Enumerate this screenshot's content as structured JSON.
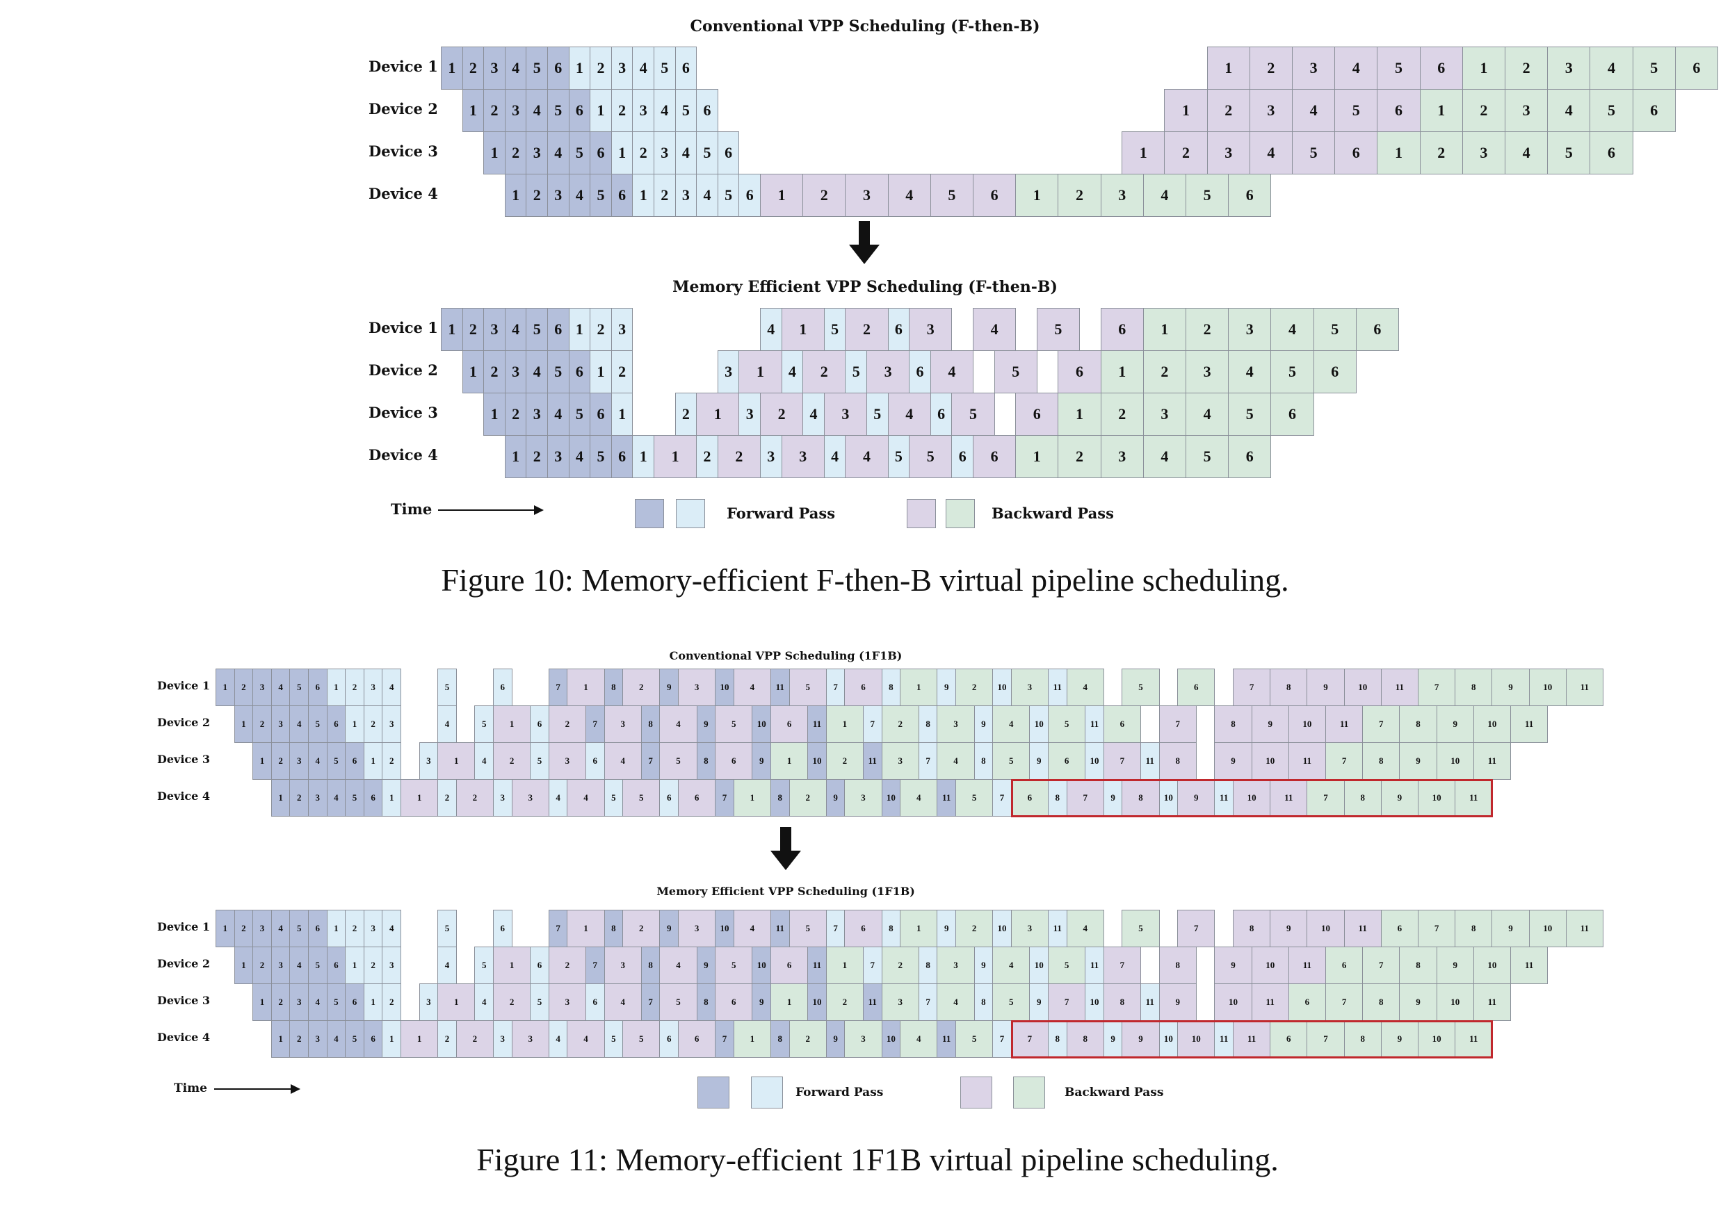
{
  "colors": {
    "forward_dark": "#b4bfdb",
    "forward_light": "#dbedf7",
    "backward_purple": "#dcd4e7",
    "backward_green": "#d7e9dc",
    "highlight": "#c0282d"
  },
  "legend": {
    "time": "Time",
    "forward": "Forward Pass",
    "backward": "Backward Pass"
  },
  "fig10": {
    "caption": "Figure 10: Memory-efficient F-then-B virtual pipeline scheduling.",
    "conventional": {
      "title": "Conventional VPP Scheduling (F-then-B)",
      "devices": [
        {
          "label": "Device 1",
          "cells": [
            "1d",
            "2d",
            "3d",
            "4d",
            "5d",
            "6d",
            "1l",
            "2l",
            "3l",
            "4l",
            "5l",
            "6l",
            null,
            null,
            null,
            null,
            null,
            null,
            null,
            null,
            null,
            null,
            null,
            null,
            null,
            null,
            null,
            null,
            null,
            null,
            null,
            null,
            null,
            null,
            null,
            null,
            "1p",
            "1p",
            "2p",
            "2p",
            "3p",
            "3p",
            "4p",
            "4p",
            "5p",
            "5p",
            "6p",
            "6p",
            "1g",
            "1g",
            "2g",
            "2g",
            "3g",
            "3g",
            "4g",
            "4g",
            "5g",
            "5g",
            "6g",
            "6g"
          ]
        },
        {
          "label": "Device 2",
          "cells": [
            null,
            "1d",
            "2d",
            "3d",
            "4d",
            "5d",
            "6d",
            "1l",
            "2l",
            "3l",
            "4l",
            "5l",
            "6l",
            null,
            null,
            null,
            null,
            null,
            null,
            null,
            null,
            null,
            null,
            null,
            null,
            null,
            null,
            null,
            null,
            null,
            null,
            null,
            null,
            null,
            "1p",
            "1p",
            "2p",
            "2p",
            "3p",
            "3p",
            "4p",
            "4p",
            "5p",
            "5p",
            "6p",
            "6p",
            "1g",
            "1g",
            "2g",
            "2g",
            "3g",
            "3g",
            "4g",
            "4g",
            "5g",
            "5g",
            "6g",
            "6g"
          ]
        },
        {
          "label": "Device 3",
          "cells": [
            null,
            null,
            "1d",
            "2d",
            "3d",
            "4d",
            "5d",
            "6d",
            "1l",
            "2l",
            "3l",
            "4l",
            "5l",
            "6l",
            null,
            null,
            null,
            null,
            null,
            null,
            null,
            null,
            null,
            null,
            null,
            null,
            null,
            null,
            null,
            null,
            null,
            null,
            "1p",
            "1p",
            "2p",
            "2p",
            "3p",
            "3p",
            "4p",
            "4p",
            "5p",
            "5p",
            "6p",
            "6p",
            "1g",
            "1g",
            "2g",
            "2g",
            "3g",
            "3g",
            "4g",
            "4g",
            "5g",
            "5g",
            "6g",
            "6g"
          ]
        },
        {
          "label": "Device 4",
          "cells": [
            null,
            null,
            null,
            "1d",
            "2d",
            "3d",
            "4d",
            "5d",
            "6d",
            "1l",
            "2l",
            "3l",
            "4l",
            "5l",
            "6l",
            "1p",
            "1p",
            "2p",
            "2p",
            "3p",
            "3p",
            "4p",
            "4p",
            "5p",
            "5p",
            "6p",
            "6p",
            "1g",
            "1g",
            "2g",
            "2g",
            "3g",
            "3g",
            "4g",
            "4g",
            "5g",
            "5g",
            "6g",
            "6g"
          ]
        }
      ]
    },
    "memory_efficient": {
      "title": "Memory Efficient VPP Scheduling (F-then-B)",
      "devices": [
        {
          "label": "Device 1",
          "cells": [
            "1d",
            "2d",
            "3d",
            "4d",
            "5d",
            "6d",
            "1l",
            "2l",
            "3l",
            null,
            null,
            null,
            null,
            null,
            null,
            "4l",
            "1p",
            "1p",
            "5l",
            "2p",
            "2p",
            "6l",
            "3p",
            "3p",
            null,
            "4p",
            "4p",
            null,
            "5p",
            "5p",
            null,
            "6p",
            "6p",
            "1g",
            "1g",
            "2g",
            "2g",
            "3g",
            "3g",
            "4g",
            "4g",
            "5g",
            "5g",
            "6g",
            "6g"
          ]
        },
        {
          "label": "Device 2",
          "cells": [
            null,
            "1d",
            "2d",
            "3d",
            "4d",
            "5d",
            "6d",
            "1l",
            "2l",
            null,
            null,
            null,
            null,
            "3l",
            "1p",
            "1p",
            "4l",
            "2p",
            "2p",
            "5l",
            "3p",
            "3p",
            "6l",
            "4p",
            "4p",
            null,
            "5p",
            "5p",
            null,
            "6p",
            "6p",
            "1g",
            "1g",
            "2g",
            "2g",
            "3g",
            "3g",
            "4g",
            "4g",
            "5g",
            "5g",
            "6g",
            "6g"
          ]
        },
        {
          "label": "Device 3",
          "cells": [
            null,
            null,
            "1d",
            "2d",
            "3d",
            "4d",
            "5d",
            "6d",
            "1l",
            null,
            null,
            "2l",
            "1p",
            "1p",
            "3l",
            "2p",
            "2p",
            "4l",
            "3p",
            "3p",
            "5l",
            "4p",
            "4p",
            "6l",
            "5p",
            "5p",
            null,
            "6p",
            "6p",
            "1g",
            "1g",
            "2g",
            "2g",
            "3g",
            "3g",
            "4g",
            "4g",
            "5g",
            "5g",
            "6g",
            "6g"
          ]
        },
        {
          "label": "Device 4",
          "cells": [
            null,
            null,
            null,
            "1d",
            "2d",
            "3d",
            "4d",
            "5d",
            "6d",
            "1l",
            "1p",
            "1p",
            "2l",
            "2p",
            "2p",
            "3l",
            "3p",
            "3p",
            "4l",
            "4p",
            "4p",
            "5l",
            "5p",
            "5p",
            "6l",
            "6p",
            "6p",
            "1g",
            "1g",
            "2g",
            "2g",
            "3g",
            "3g",
            "4g",
            "4g",
            "5g",
            "5g",
            "6g",
            "6g"
          ]
        }
      ]
    }
  },
  "fig11": {
    "caption": "Figure 11: Memory-efficient 1F1B virtual pipeline scheduling.",
    "conventional": {
      "title": "Conventional VPP Scheduling (1F1B)",
      "devices": [
        {
          "label": "Device 1",
          "cells": [
            "1d",
            "2d",
            "3d",
            "4d",
            "5d",
            "6d",
            "1l",
            "2l",
            "3l",
            "4l",
            null,
            null,
            "5l",
            null,
            null,
            "6l",
            null,
            null,
            "7d",
            "1p",
            "1p",
            "8d",
            "2p",
            "2p",
            "9d",
            "3p",
            "3p",
            "10d",
            "4p",
            "4p",
            "11d",
            "5p",
            "5p",
            "7l",
            "6p",
            "6p",
            "8l",
            "1g",
            "1g",
            "9l",
            "2g",
            "2g",
            "10l",
            "3g",
            "3g",
            "11l",
            "4g",
            "4g",
            null,
            "5g",
            "5g",
            null,
            "6g",
            "6g",
            null,
            "7p",
            "7p",
            "8p",
            "8p",
            "9p",
            "9p",
            "10p",
            "10p",
            "11p",
            "11p",
            "7g",
            "7g",
            "8g",
            "8g",
            "9g",
            "9g",
            "10g",
            "10g",
            "11g",
            "11g"
          ]
        },
        {
          "label": "Device 2",
          "cells": [
            null,
            "1d",
            "2d",
            "3d",
            "4d",
            "5d",
            "6d",
            "1l",
            "2l",
            "3l",
            null,
            null,
            "4l",
            null,
            "5l",
            "1p",
            "1p",
            "6l",
            "2p",
            "2p",
            "7d",
            "3p",
            "3p",
            "8d",
            "4p",
            "4p",
            "9d",
            "5p",
            "5p",
            "10d",
            "6p",
            "6p",
            "11d",
            "1g",
            "1g",
            "7l",
            "2g",
            "2g",
            "8l",
            "3g",
            "3g",
            "9l",
            "4g",
            "4g",
            "10l",
            "5g",
            "5g",
            "11l",
            "6g",
            "6g",
            null,
            "7p",
            "7p",
            null,
            "8p",
            "8p",
            "9p",
            "9p",
            "10p",
            "10p",
            "11p",
            "11p",
            "7g",
            "7g",
            "8g",
            "8g",
            "9g",
            "9g",
            "10g",
            "10g",
            "11g",
            "11g"
          ]
        },
        {
          "label": "Device 3",
          "cells": [
            null,
            null,
            "1d",
            "2d",
            "3d",
            "4d",
            "5d",
            "6d",
            "1l",
            "2l",
            null,
            "3l",
            "1p",
            "1p",
            "4l",
            "2p",
            "2p",
            "5l",
            "3p",
            "3p",
            "6l",
            "4p",
            "4p",
            "7d",
            "5p",
            "5p",
            "8d",
            "6p",
            "6p",
            "9d",
            "1g",
            "1g",
            "10d",
            "2g",
            "2g",
            "11d",
            "3g",
            "3g",
            "7l",
            "4g",
            "4g",
            "8l",
            "5g",
            "5g",
            "9l",
            "6g",
            "6g",
            "10l",
            "7p",
            "7p",
            "11l",
            "8p",
            "8p",
            null,
            "9p",
            "9p",
            "10p",
            "10p",
            "11p",
            "11p",
            "7g",
            "7g",
            "8g",
            "8g",
            "9g",
            "9g",
            "10g",
            "10g",
            "11g",
            "11g"
          ]
        },
        {
          "label": "Device 4",
          "cells": [
            null,
            null,
            null,
            "1d",
            "2d",
            "3d",
            "4d",
            "5d",
            "6d",
            "1l",
            "1p",
            "1p",
            "2l",
            "2p",
            "2p",
            "3l",
            "3p",
            "3p",
            "4l",
            "4p",
            "4p",
            "5l",
            "5p",
            "5p",
            "6l",
            "6p",
            "6p",
            "7d",
            "1g",
            "1g",
            "8d",
            "2g",
            "2g",
            "9d",
            "3g",
            "3g",
            "10d",
            "4g",
            "4g",
            "11d",
            "5g",
            "5g",
            "7l",
            "6g",
            "6g",
            "8l",
            "7p",
            "7p",
            "9l",
            "8p",
            "8p",
            "10l",
            "9p",
            "9p",
            "11l",
            "10p",
            "10p",
            "11p",
            "11p",
            "7g",
            "7g",
            "8g",
            "8g",
            "9g",
            "9g",
            "10g",
            "10g",
            "11g",
            "11g"
          ]
        }
      ]
    },
    "memory_efficient": {
      "title": "Memory Efficient VPP Scheduling (1F1B)",
      "devices": [
        {
          "label": "Device 1",
          "cells": [
            "1d",
            "2d",
            "3d",
            "4d",
            "5d",
            "6d",
            "1l",
            "2l",
            "3l",
            "4l",
            null,
            null,
            "5l",
            null,
            null,
            "6l",
            null,
            null,
            "7d",
            "1p",
            "1p",
            "8d",
            "2p",
            "2p",
            "9d",
            "3p",
            "3p",
            "10d",
            "4p",
            "4p",
            "11d",
            "5p",
            "5p",
            "7l",
            "6p",
            "6p",
            "8l",
            "1g",
            "1g",
            "9l",
            "2g",
            "2g",
            "10l",
            "3g",
            "3g",
            "11l",
            "4g",
            "4g",
            null,
            "5g",
            "5g",
            null,
            "7p",
            "7p",
            null,
            "8p",
            "8p",
            "9p",
            "9p",
            "10p",
            "10p",
            "11p",
            "11p",
            "6g",
            "6g",
            "7g",
            "7g",
            "8g",
            "8g",
            "9g",
            "9g",
            "10g",
            "10g",
            "11g",
            "11g"
          ]
        },
        {
          "label": "Device 2",
          "cells": [
            null,
            "1d",
            "2d",
            "3d",
            "4d",
            "5d",
            "6d",
            "1l",
            "2l",
            "3l",
            null,
            null,
            "4l",
            null,
            "5l",
            "1p",
            "1p",
            "6l",
            "2p",
            "2p",
            "7d",
            "3p",
            "3p",
            "8d",
            "4p",
            "4p",
            "9d",
            "5p",
            "5p",
            "10d",
            "6p",
            "6p",
            "11d",
            "1g",
            "1g",
            "7l",
            "2g",
            "2g",
            "8l",
            "3g",
            "3g",
            "9l",
            "4g",
            "4g",
            "10l",
            "5g",
            "5g",
            "11l",
            "7p",
            "7p",
            null,
            "8p",
            "8p",
            null,
            "9p",
            "9p",
            "10p",
            "10p",
            "11p",
            "11p",
            "6g",
            "6g",
            "7g",
            "7g",
            "8g",
            "8g",
            "9g",
            "9g",
            "10g",
            "10g",
            "11g",
            "11g"
          ]
        },
        {
          "label": "Device 3",
          "cells": [
            null,
            null,
            "1d",
            "2d",
            "3d",
            "4d",
            "5d",
            "6d",
            "1l",
            "2l",
            null,
            "3l",
            "1p",
            "1p",
            "4l",
            "2p",
            "2p",
            "5l",
            "3p",
            "3p",
            "6l",
            "4p",
            "4p",
            "7d",
            "5p",
            "5p",
            "8d",
            "6p",
            "6p",
            "9d",
            "1g",
            "1g",
            "10d",
            "2g",
            "2g",
            "11d",
            "3g",
            "3g",
            "7l",
            "4g",
            "4g",
            "8l",
            "5g",
            "5g",
            "9l",
            "7p",
            "7p",
            "10l",
            "8p",
            "8p",
            "11l",
            "9p",
            "9p",
            null,
            "10p",
            "10p",
            "11p",
            "11p",
            "6g",
            "6g",
            "7g",
            "7g",
            "8g",
            "8g",
            "9g",
            "9g",
            "10g",
            "10g",
            "11g",
            "11g"
          ]
        },
        {
          "label": "Device 4",
          "cells": [
            null,
            null,
            null,
            "1d",
            "2d",
            "3d",
            "4d",
            "5d",
            "6d",
            "1l",
            "1p",
            "1p",
            "2l",
            "2p",
            "2p",
            "3l",
            "3p",
            "3p",
            "4l",
            "4p",
            "4p",
            "5l",
            "5p",
            "5p",
            "6l",
            "6p",
            "6p",
            "7d",
            "1g",
            "1g",
            "8d",
            "2g",
            "2g",
            "9d",
            "3g",
            "3g",
            "10d",
            "4g",
            "4g",
            "11d",
            "5g",
            "5g",
            "7l",
            "7p",
            "7p",
            "8l",
            "8p",
            "8p",
            "9l",
            "9p",
            "9p",
            "10l",
            "10p",
            "10p",
            "11l",
            "11p",
            "11p",
            "6g",
            "6g",
            "7g",
            "7g",
            "8g",
            "8g",
            "9g",
            "9g",
            "10g",
            "10g",
            "11g",
            "11g"
          ]
        }
      ]
    }
  }
}
